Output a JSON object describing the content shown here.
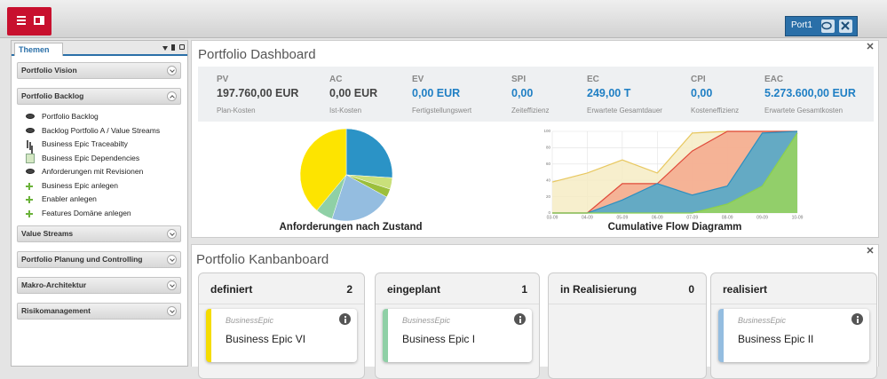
{
  "app": {
    "tab": "Port1"
  },
  "sidebar": {
    "tab": "Themen",
    "groups": [
      {
        "title": "Portfolio Vision",
        "expanded": false
      },
      {
        "title": "Portfolio Backlog",
        "expanded": true,
        "items": [
          {
            "label": "Portfolio Backlog",
            "icon": "eye"
          },
          {
            "label": "Backlog Portfolio A / Value Streams",
            "icon": "eye"
          },
          {
            "label": "Business Epic Traceabilty",
            "icon": "tree"
          },
          {
            "label": "Business Epic Dependencies",
            "icon": "doc"
          },
          {
            "label": "Anforderungen mit Revisionen",
            "icon": "eye"
          },
          {
            "label": "Business Epic anlegen",
            "icon": "plus"
          },
          {
            "label": "Enabler anlegen",
            "icon": "plus"
          },
          {
            "label": "Features Domäne anlegen",
            "icon": "plus"
          }
        ]
      },
      {
        "title": "Value Streams",
        "expanded": false
      },
      {
        "title": "Portfolio Planung und Controlling",
        "expanded": false
      },
      {
        "title": "Makro-Architektur",
        "expanded": false
      },
      {
        "title": "Risikomanagement",
        "expanded": false
      }
    ]
  },
  "dashboard": {
    "title": "Portfolio Dashboard",
    "kpis": [
      {
        "name": "PV",
        "value": "197.760,00 EUR",
        "caption": "Plan-Kosten",
        "color": "#444444"
      },
      {
        "name": "AC",
        "value": "0,00 EUR",
        "caption": "Ist-Kosten",
        "color": "#444444"
      },
      {
        "name": "EV",
        "value": "0,00 EUR",
        "caption": "Fertigstellungswert",
        "color": "#1f7fc4"
      },
      {
        "name": "SPI",
        "value": "0,00",
        "caption": "Zeiteffizienz",
        "color": "#1f7fc4"
      },
      {
        "name": "EC",
        "value": "249,00 T",
        "caption": "Erwartete Gesamtdauer",
        "color": "#1f7fc4"
      },
      {
        "name": "CPI",
        "value": "0,00",
        "caption": "Kosteneffizienz",
        "color": "#1f7fc4"
      },
      {
        "name": "EAC",
        "value": "5.273.600,00 EUR",
        "caption": "Erwartete Gesamtkosten",
        "color": "#1f7fc4"
      }
    ],
    "charts": [
      {
        "type": "pie",
        "title": "Anforderungen nach Zustand",
        "values": [
          26,
          4,
          3,
          22,
          6,
          39
        ],
        "colors": [
          "#2b93c6",
          "#c9e07a",
          "#9cbf3c",
          "#94bde0",
          "#8fd0a6",
          "#fde400"
        ]
      },
      {
        "type": "area",
        "title": "Cumulative Flow Diagramm",
        "categories": [
          "03-09",
          "04-09",
          "05-09",
          "06-09",
          "07-09",
          "08-09",
          "09-09",
          "10-09"
        ],
        "ylim": [
          0,
          100
        ],
        "yticks": [
          0,
          20,
          40,
          60,
          80,
          100
        ],
        "grid": true,
        "series": [
          {
            "color": "#e8c860",
            "fill": "#f6ecc4",
            "values": [
              38,
              49,
              65,
              49,
              98,
              100,
              100,
              100
            ]
          },
          {
            "color": "#e04a3a",
            "fill": "#f4a88c",
            "values": [
              0,
              0,
              36,
              36,
              76,
              100,
              100,
              100
            ]
          },
          {
            "color": "#2c8fc0",
            "fill": "#4aa8cc",
            "values": [
              0,
              0,
              16,
              36,
              22,
              33,
              98,
              100
            ]
          },
          {
            "color": "#8cd04c",
            "fill": "#9ad65a",
            "values": [
              0,
              0,
              0,
              0,
              0,
              11,
              33,
              98
            ]
          }
        ]
      }
    ]
  },
  "kanban": {
    "title": "Portfolio Kanbanboard",
    "columns": [
      {
        "name": "definiert",
        "count": 2,
        "cards": [
          {
            "type": "BusinessEpic",
            "title": "Business Epic VI",
            "color": "#f5dc00"
          }
        ]
      },
      {
        "name": "eingeplant",
        "count": 1,
        "cards": [
          {
            "type": "BusinessEpic",
            "title": "Business Epic I",
            "color": "#8fd0a6"
          }
        ]
      },
      {
        "name": "in Realisierung",
        "count": 0,
        "cards": []
      },
      {
        "name": "realisiert",
        "count": null,
        "cards": [
          {
            "type": "BusinessEpic",
            "title": "Business Epic II",
            "color": "#94bde0"
          }
        ]
      }
    ]
  }
}
